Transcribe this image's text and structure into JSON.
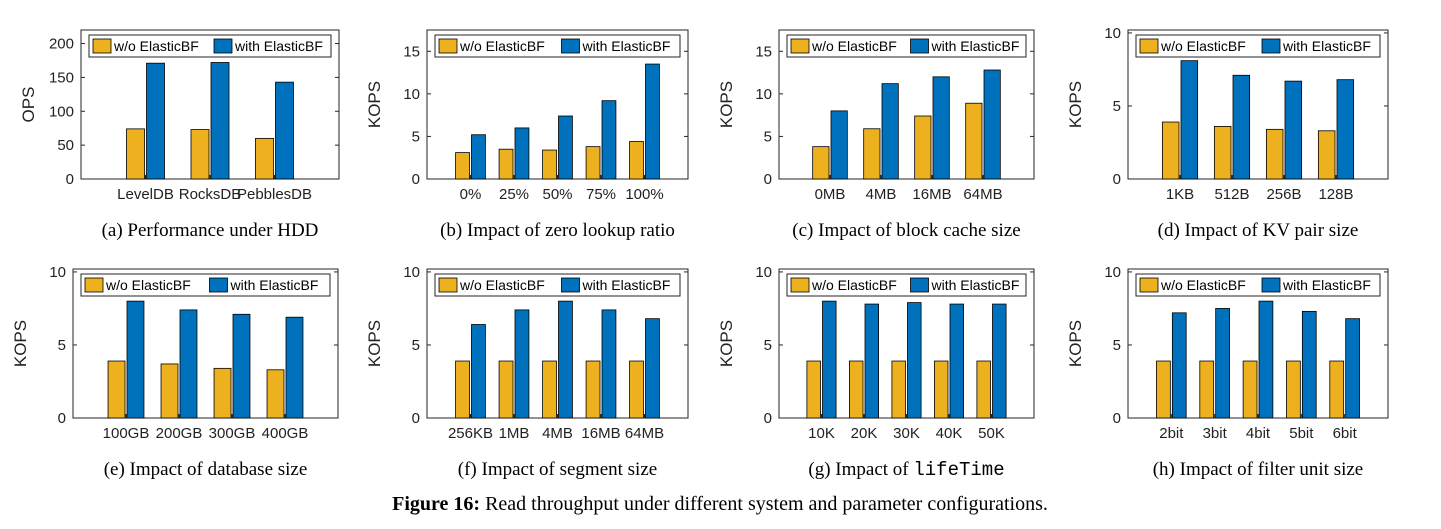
{
  "colors": {
    "without": "#EDB120",
    "with": "#0072BD",
    "edge": "#000000"
  },
  "legend": {
    "without": "w/o ElasticBF",
    "with": "with ElasticBF"
  },
  "figure_caption": {
    "label": "Figure 16:",
    "text": " Read throughput under different system and parameter configurations."
  },
  "chart_data": [
    {
      "type": "bar",
      "caption_prefix": "(a)  Performance under HDD",
      "caption_code": "",
      "ylabel": "OPS",
      "ylim": [
        0,
        220
      ],
      "yticks": [
        0,
        50,
        100,
        150,
        200
      ],
      "legend_placement": "top",
      "categories": [
        "LevelDB",
        "RocksDB",
        "PebblesDB"
      ],
      "series": [
        {
          "name": "w/o ElasticBF",
          "values": [
            74,
            73,
            60
          ]
        },
        {
          "name": "with ElasticBF",
          "values": [
            171,
            172,
            143
          ]
        }
      ]
    },
    {
      "type": "bar",
      "caption_prefix": "(b)  Impact of zero lookup ratio",
      "caption_code": "",
      "ylabel": "KOPS",
      "ylim": [
        0,
        17.5
      ],
      "yticks": [
        0,
        5,
        10,
        15
      ],
      "legend_placement": "top",
      "categories": [
        "0%",
        "25%",
        "50%",
        "75%",
        "100%"
      ],
      "series": [
        {
          "name": "w/o ElasticBF",
          "values": [
            3.1,
            3.5,
            3.4,
            3.8,
            4.4
          ]
        },
        {
          "name": "with ElasticBF",
          "values": [
            5.2,
            6.0,
            7.4,
            9.2,
            13.5
          ]
        }
      ]
    },
    {
      "type": "bar",
      "caption_prefix": "(c)  Impact of block cache size",
      "caption_code": "",
      "ylabel": "KOPS",
      "ylim": [
        0,
        17.5
      ],
      "yticks": [
        0,
        5,
        10,
        15
      ],
      "legend_placement": "top",
      "categories": [
        "0MB",
        "4MB",
        "16MB",
        "64MB"
      ],
      "series": [
        {
          "name": "w/o ElasticBF",
          "values": [
            3.8,
            5.9,
            7.4,
            8.9
          ]
        },
        {
          "name": "with ElasticBF",
          "values": [
            8.0,
            11.2,
            12.0,
            12.8
          ]
        }
      ]
    },
    {
      "type": "bar",
      "caption_prefix": "(d)  Impact of KV pair size",
      "caption_code": "",
      "ylabel": "KOPS",
      "ylim": [
        0,
        10.2
      ],
      "yticks": [
        0,
        5,
        10
      ],
      "legend_placement": "top",
      "categories": [
        "1KB",
        "512B",
        "256B",
        "128B"
      ],
      "series": [
        {
          "name": "w/o ElasticBF",
          "values": [
            3.9,
            3.6,
            3.4,
            3.3
          ]
        },
        {
          "name": "with ElasticBF",
          "values": [
            8.1,
            7.1,
            6.7,
            6.8
          ]
        }
      ]
    },
    {
      "type": "bar",
      "caption_prefix": "(e)  Impact of database size",
      "caption_code": "",
      "ylabel": "KOPS",
      "ylim": [
        0,
        10.2
      ],
      "yticks": [
        0,
        5,
        10
      ],
      "legend_placement": "top",
      "categories": [
        "100GB",
        "200GB",
        "300GB",
        "400GB"
      ],
      "series": [
        {
          "name": "w/o ElasticBF",
          "values": [
            3.9,
            3.7,
            3.4,
            3.3
          ]
        },
        {
          "name": "with ElasticBF",
          "values": [
            8.0,
            7.4,
            7.1,
            6.9
          ]
        }
      ]
    },
    {
      "type": "bar",
      "caption_prefix": "(f)  Impact of segment size",
      "caption_code": "",
      "ylabel": "KOPS",
      "ylim": [
        0,
        10.2
      ],
      "yticks": [
        0,
        5,
        10
      ],
      "legend_placement": "top",
      "categories": [
        "256KB",
        "1MB",
        "4MB",
        "16MB",
        "64MB"
      ],
      "series": [
        {
          "name": "w/o ElasticBF",
          "values": [
            3.9,
            3.9,
            3.9,
            3.9,
            3.9
          ]
        },
        {
          "name": "with ElasticBF",
          "values": [
            6.4,
            7.4,
            8.0,
            7.4,
            6.8
          ]
        }
      ]
    },
    {
      "type": "bar",
      "caption_prefix": "(g)  Impact of ",
      "caption_code": "lifeTime",
      "ylabel": "KOPS",
      "ylim": [
        0,
        10.2
      ],
      "yticks": [
        0,
        5,
        10
      ],
      "legend_placement": "top",
      "categories": [
        "10K",
        "20K",
        "30K",
        "40K",
        "50K"
      ],
      "series": [
        {
          "name": "w/o ElasticBF",
          "values": [
            3.9,
            3.9,
            3.9,
            3.9,
            3.9
          ]
        },
        {
          "name": "with ElasticBF",
          "values": [
            8.0,
            7.8,
            7.9,
            7.8,
            7.8
          ]
        }
      ]
    },
    {
      "type": "bar",
      "caption_prefix": "(h)  Impact of filter unit size",
      "caption_code": "",
      "ylabel": "KOPS",
      "ylim": [
        0,
        10.2
      ],
      "yticks": [
        0,
        5,
        10
      ],
      "legend_placement": "top",
      "categories": [
        "2bit",
        "3bit",
        "4bit",
        "5bit",
        "6bit"
      ],
      "series": [
        {
          "name": "w/o ElasticBF",
          "values": [
            3.9,
            3.9,
            3.9,
            3.9,
            3.9
          ]
        },
        {
          "name": "with ElasticBF",
          "values": [
            7.2,
            7.5,
            8.0,
            7.3,
            6.8
          ]
        }
      ]
    }
  ]
}
